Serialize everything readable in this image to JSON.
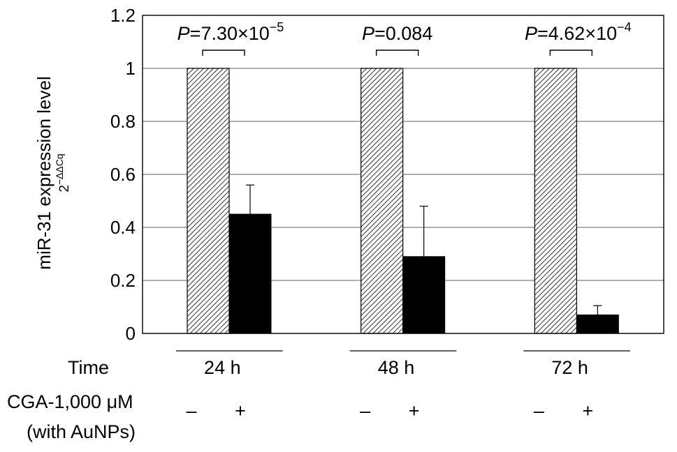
{
  "chart_data": {
    "type": "bar",
    "ylabel": "miR-31 expression level",
    "ylabel_sub": "2",
    "ylabel_sub_exp": "−ΔΔCq",
    "ylim": [
      0,
      1.2
    ],
    "yticks": [
      "0",
      "0.2",
      "0.4",
      "0.6",
      "0.8",
      "1",
      "1.2"
    ],
    "grid": true,
    "groups": [
      {
        "time": "24 h",
        "control": 1.0,
        "treated": 0.45,
        "treated_error": 0.11,
        "p_prefix": "P",
        "p_value": "=7.30×10",
        "p_exp": "−5",
        "minus": "–",
        "plus": "+"
      },
      {
        "time": "48 h",
        "control": 1.0,
        "treated": 0.29,
        "treated_error": 0.19,
        "p_prefix": "P",
        "p_value": "=0.084",
        "p_exp": "",
        "minus": "–",
        "plus": "+"
      },
      {
        "time": "72 h",
        "control": 1.0,
        "treated": 0.07,
        "treated_error": 0.035,
        "p_prefix": "P",
        "p_value": "=4.62×10",
        "p_exp": "−4",
        "minus": "–",
        "plus": "+"
      }
    ],
    "row_time_label": "Time",
    "row_treatment_label_1": "CGA-1,000 μM",
    "row_treatment_label_2": "(with AuNPs)",
    "colors": {
      "treated": "#000000",
      "control_hatch": "#000000",
      "grid": "#7f7f7f"
    }
  }
}
